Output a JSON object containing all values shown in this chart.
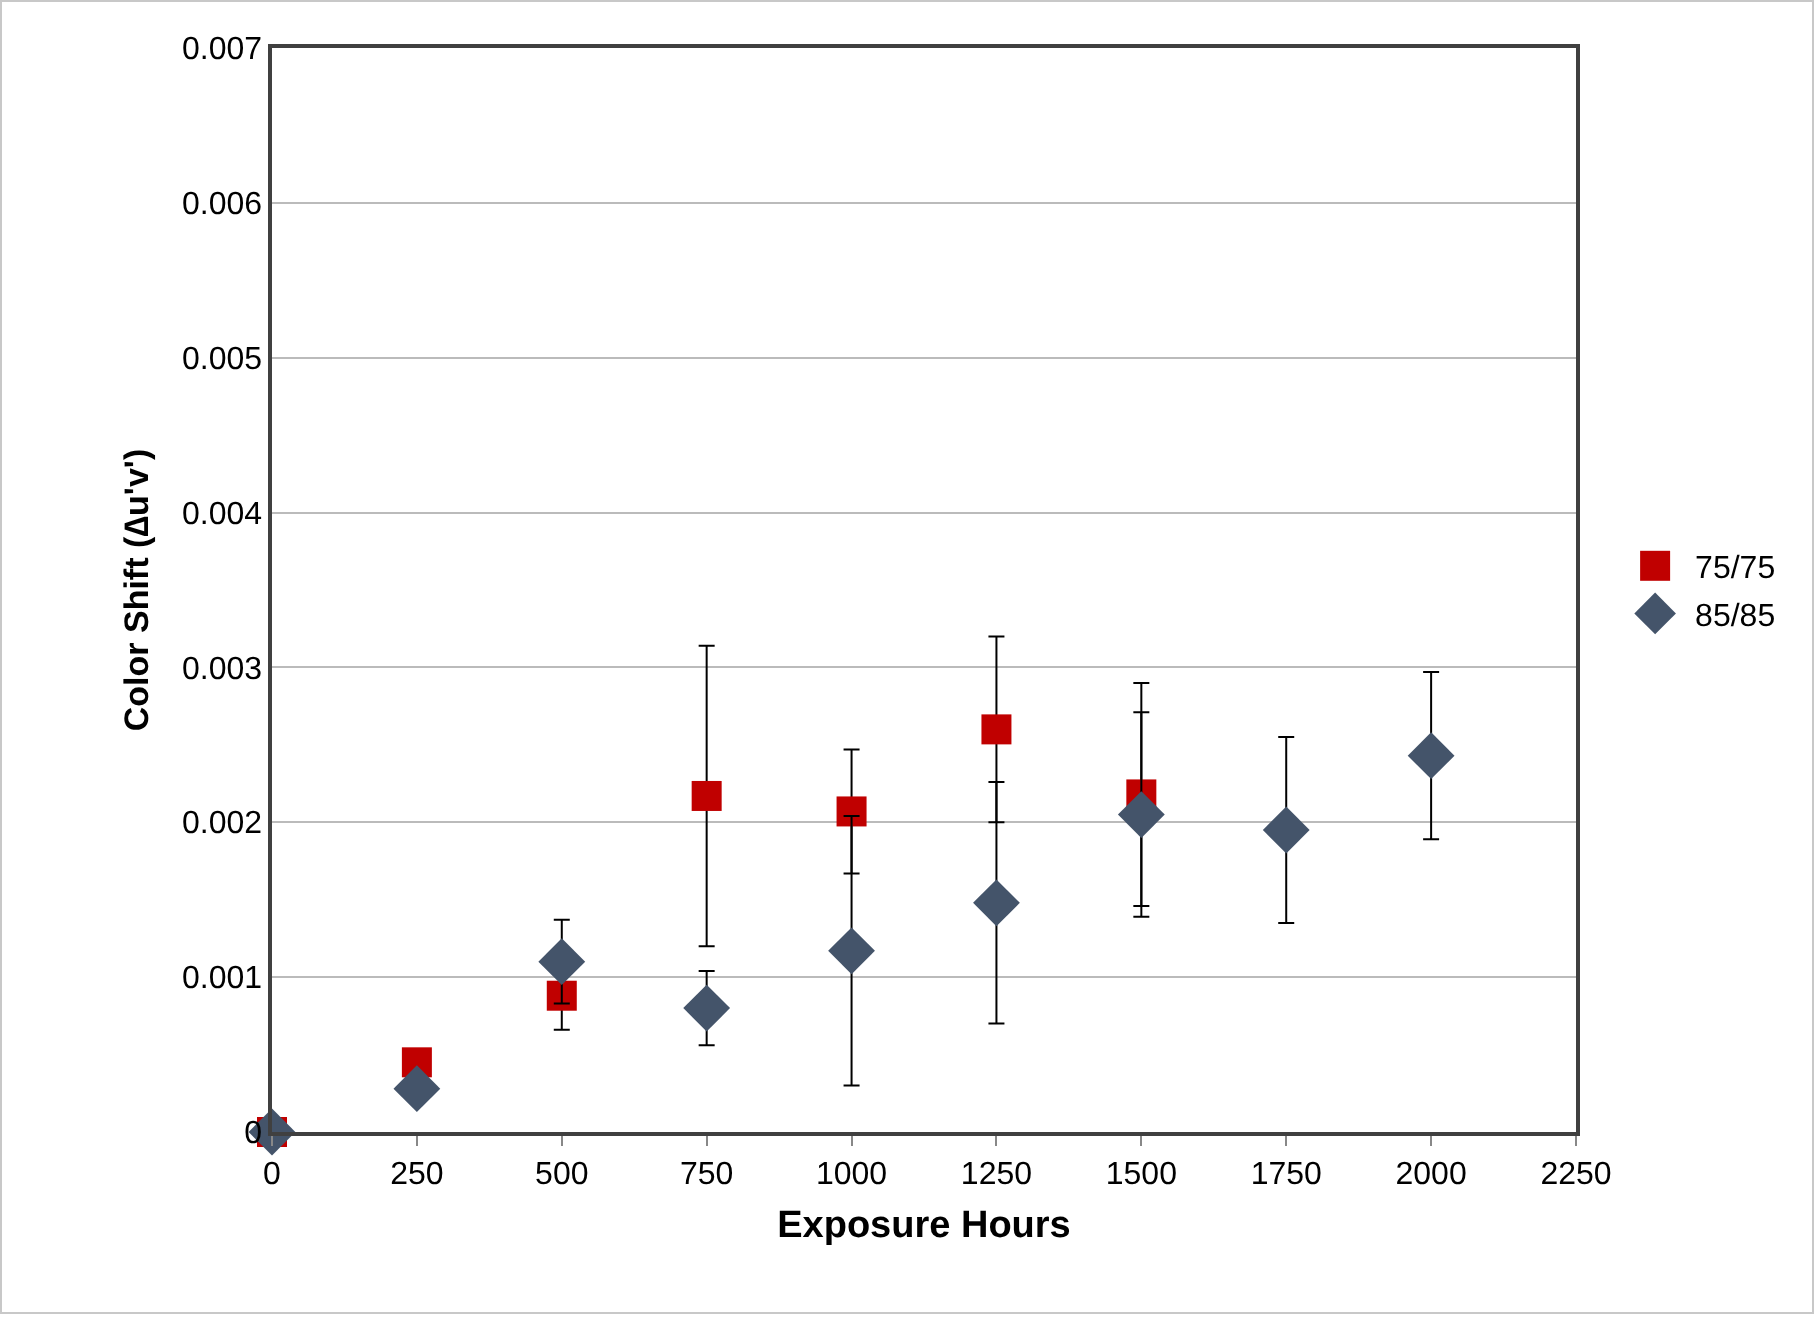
{
  "chart_data": {
    "type": "scatter",
    "xlabel": "Exposure Hours",
    "ylabel": "Color Shift (∆u'v')",
    "xlim": [
      0,
      2250
    ],
    "xticks": [
      0,
      250,
      500,
      750,
      1000,
      1250,
      1500,
      1750,
      2000,
      2250
    ],
    "ylim": [
      0,
      0.007
    ],
    "yticks": [
      0,
      0.001,
      0.002,
      0.003,
      0.004,
      0.005,
      0.006,
      0.007
    ],
    "grid": "y",
    "legend": "right",
    "series": [
      {
        "name": "75/75",
        "color": "#c00000",
        "marker": "square",
        "x": [
          0,
          250,
          500,
          750,
          1000,
          1250,
          1500
        ],
        "values": [
          0,
          0.00045,
          0.00088,
          0.00217,
          0.00207,
          0.0026,
          0.00218
        ],
        "errors": [
          null,
          null,
          0.00022,
          0.00097,
          0.0004,
          0.0006,
          0.00072
        ]
      },
      {
        "name": "85/85",
        "color": "#44546a",
        "marker": "diamond",
        "x": [
          0,
          250,
          500,
          750,
          1000,
          1250,
          1500,
          1750,
          2000
        ],
        "values": [
          0,
          0.00028,
          0.0011,
          0.0008,
          0.00117,
          0.00148,
          0.00205,
          0.00195,
          0.00243
        ],
        "errors": [
          null,
          null,
          0.00027,
          0.00024,
          0.00087,
          0.00078,
          0.00066,
          0.0006,
          0.00054
        ]
      }
    ]
  }
}
